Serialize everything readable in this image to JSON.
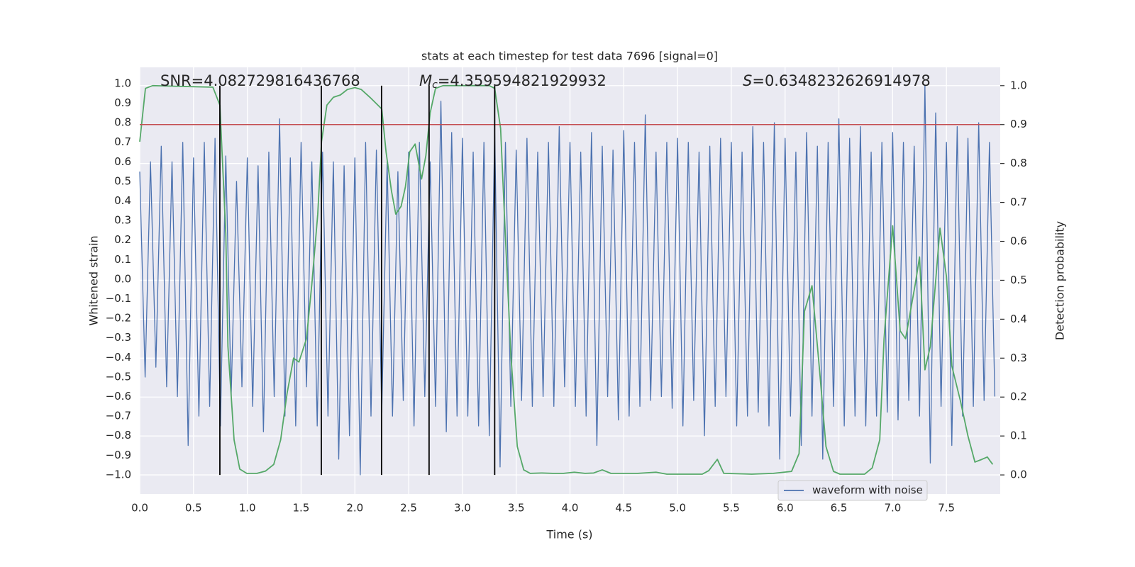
{
  "chart_data": {
    "type": "line",
    "title": "stats at each timestep for test data 7696 [signal=0]",
    "xlabel": "Time (s)",
    "ylabel": "Whitened strain",
    "y2label": "Detection probability",
    "annotations": [
      {
        "text": "SNR=4.082729816436768"
      },
      {
        "symbol": "M",
        "subscript": "c",
        "text": "=4.359594821929932"
      },
      {
        "symbol": "S",
        "text": "=0.6348232626914978"
      }
    ],
    "xlim": [
      0,
      8
    ],
    "ylim": [
      -1.098,
      1.083
    ],
    "y2lim": [
      -0.049,
      1.047
    ],
    "xticks": [
      {
        "value": 0,
        "label": "0.0"
      },
      0.5,
      {
        "value": 1,
        "label": "1.0"
      },
      1.5,
      {
        "value": 2,
        "label": "2.0"
      },
      2.5,
      {
        "value": 3,
        "label": "3.0"
      },
      3.5,
      {
        "value": 4,
        "label": "4.0"
      },
      4.5,
      {
        "value": 5,
        "label": "5.0"
      },
      5.5,
      {
        "value": 6,
        "label": "6.0"
      },
      6.5,
      {
        "value": 7,
        "label": "7.0"
      },
      7.5
    ],
    "yticks": [
      {
        "value": 1,
        "label": "1.0"
      },
      0.9,
      0.8,
      0.7,
      0.6,
      0.5,
      0.4,
      0.3,
      0.2,
      0.1,
      {
        "value": 0,
        "label": "0.0"
      },
      {
        "value": -0.1,
        "label": "−0.1"
      },
      {
        "value": -0.2,
        "label": "−0.2"
      },
      {
        "value": -0.3,
        "label": "−0.3"
      },
      {
        "value": -0.4,
        "label": "−0.4"
      },
      {
        "value": -0.5,
        "label": "−0.5"
      },
      {
        "value": -0.6,
        "label": "−0.6"
      },
      {
        "value": -0.7,
        "label": "−0.7"
      },
      {
        "value": -0.8,
        "label": "−0.8"
      },
      {
        "value": -0.9,
        "label": "−0.9"
      },
      {
        "value": -1,
        "label": "−1.0"
      }
    ],
    "y2ticks": [
      {
        "value": 0,
        "label": "0.0"
      },
      0.1,
      0.2,
      0.3,
      0.4,
      0.5,
      0.6,
      0.7,
      0.8,
      0.9,
      {
        "value": 1,
        "label": "1.0"
      }
    ],
    "grid": {
      "x": true,
      "y2": true
    },
    "legend": "lower right",
    "series": [
      {
        "name": "waveform with noise",
        "color": "#4c72b0",
        "axis": "y",
        "x": [
          0,
          0.05,
          0.1,
          0.15,
          0.2,
          0.25,
          0.3,
          0.35,
          0.4,
          0.45,
          0.5,
          0.55,
          0.6,
          0.65,
          0.7,
          0.75,
          0.8,
          0.85,
          0.9,
          0.95,
          1,
          1.05,
          1.1,
          1.15,
          1.2,
          1.25,
          1.3,
          1.35,
          1.4,
          1.45,
          1.5,
          1.55,
          1.6,
          1.65,
          1.7,
          1.75,
          1.8,
          1.85,
          1.9,
          1.95,
          2,
          2.05,
          2.1,
          2.15,
          2.2,
          2.25,
          2.3,
          2.35,
          2.4,
          2.45,
          2.5,
          2.55,
          2.6,
          2.65,
          2.7,
          2.75,
          2.8,
          2.85,
          2.9,
          2.95,
          3,
          3.05,
          3.1,
          3.15,
          3.2,
          3.25,
          3.3,
          3.35,
          3.4,
          3.45,
          3.5,
          3.55,
          3.6,
          3.65,
          3.7,
          3.75,
          3.8,
          3.85,
          3.9,
          3.95,
          4,
          4.05,
          4.1,
          4.15,
          4.2,
          4.25,
          4.3,
          4.35,
          4.4,
          4.45,
          4.5,
          4.55,
          4.6,
          4.65,
          4.7,
          4.75,
          4.8,
          4.85,
          4.9,
          4.95,
          5,
          5.05,
          5.1,
          5.15,
          5.2,
          5.25,
          5.3,
          5.35,
          5.4,
          5.45,
          5.5,
          5.55,
          5.6,
          5.65,
          5.7,
          5.75,
          5.8,
          5.85,
          5.9,
          5.95,
          6,
          6.05,
          6.1,
          6.15,
          6.2,
          6.25,
          6.3,
          6.35,
          6.4,
          6.45,
          6.5,
          6.55,
          6.6,
          6.65,
          6.7,
          6.75,
          6.8,
          6.85,
          6.9,
          6.95,
          7,
          7.05,
          7.1,
          7.15,
          7.2,
          7.25,
          7.3,
          7.35,
          7.4,
          7.45,
          7.5,
          7.55,
          7.6,
          7.65,
          7.7,
          7.75,
          7.8,
          7.85,
          7.9,
          7.95
        ],
        "values": [
          0.55,
          -0.5,
          0.6,
          -0.45,
          0.68,
          -0.55,
          0.6,
          -0.6,
          0.7,
          -0.85,
          0.62,
          -0.7,
          0.7,
          -0.65,
          0.72,
          -0.75,
          0.63,
          -0.6,
          0.5,
          -0.55,
          0.62,
          -0.65,
          0.58,
          -0.78,
          0.65,
          -0.6,
          0.82,
          -0.7,
          0.62,
          -0.75,
          0.7,
          -0.55,
          0.6,
          -0.75,
          0.65,
          -0.7,
          0.6,
          -0.92,
          0.58,
          -0.8,
          0.62,
          -1.0,
          0.7,
          -0.7,
          0.66,
          -0.68,
          0.6,
          -0.7,
          0.55,
          -0.62,
          0.65,
          -0.75,
          0.7,
          -0.6,
          0.6,
          -0.65,
          0.91,
          -0.78,
          0.75,
          -0.7,
          0.72,
          -0.7,
          0.65,
          -0.75,
          0.7,
          -0.8,
          0.75,
          -0.96,
          0.7,
          -0.65,
          0.66,
          -0.62,
          0.72,
          -0.65,
          0.65,
          -0.6,
          0.7,
          -0.65,
          0.78,
          -0.55,
          0.7,
          -0.65,
          0.65,
          -0.7,
          0.75,
          -0.85,
          0.68,
          -0.6,
          0.66,
          -0.72,
          0.76,
          -0.7,
          0.7,
          -0.65,
          0.84,
          -0.62,
          0.65,
          -0.6,
          0.7,
          -0.66,
          0.72,
          -0.75,
          0.7,
          -0.62,
          0.65,
          -0.8,
          0.68,
          -0.65,
          0.72,
          -0.6,
          0.7,
          -0.75,
          0.65,
          -0.7,
          0.78,
          -0.68,
          0.7,
          -0.75,
          0.8,
          -0.92,
          0.72,
          -0.7,
          0.65,
          -0.85,
          0.75,
          -0.7,
          0.68,
          -0.92,
          0.7,
          -0.65,
          0.82,
          -0.75,
          0.72,
          -0.7,
          0.78,
          -0.75,
          0.65,
          -0.7,
          0.7,
          -0.68,
          0.75,
          -0.72,
          0.7,
          -0.62,
          0.68,
          -0.7,
          0.99,
          -0.94,
          0.85,
          -0.65,
          0.7,
          -0.85,
          0.78,
          -0.7,
          0.72,
          -0.65,
          0.8,
          -0.62,
          0.7,
          -0.6
        ]
      },
      {
        "color": "#55a868",
        "axis": "y2",
        "x": [
          0,
          0.053,
          0.12,
          0.68,
          0.745,
          0.8,
          0.82,
          0.877,
          0.93,
          0.995,
          1.09,
          1.17,
          1.246,
          1.31,
          1.37,
          1.43,
          1.48,
          1.55,
          1.6,
          1.655,
          1.69,
          1.74,
          1.8,
          1.865,
          1.93,
          2,
          2.06,
          2.14,
          2.25,
          2.29,
          2.34,
          2.38,
          2.43,
          2.47,
          2.51,
          2.56,
          2.62,
          2.66,
          2.7,
          2.75,
          2.82,
          3.25,
          3.3,
          3.355,
          3.39,
          3.45,
          3.51,
          3.57,
          3.63,
          3.74,
          3.84,
          3.94,
          4.04,
          4.14,
          4.22,
          4.3,
          4.38,
          4.63,
          4.8,
          4.9,
          5.23,
          5.29,
          5.37,
          5.43,
          5.69,
          5.89,
          5.99,
          6.06,
          6.13,
          6.18,
          6.25,
          6.32,
          6.38,
          6.45,
          6.51,
          6.74,
          6.81,
          6.88,
          6.92,
          7,
          7.07,
          7.12,
          7.21,
          7.25,
          7.3,
          7.35,
          7.44,
          7.5,
          7.55,
          7.63,
          7.7,
          7.765,
          7.83,
          7.88,
          7.93
        ],
        "values": [
          0.856,
          0.993,
          1,
          0.996,
          0.95,
          0.62,
          0.33,
          0.09,
          0.015,
          0.004,
          0.004,
          0.01,
          0.027,
          0.09,
          0.21,
          0.3,
          0.29,
          0.35,
          0.49,
          0.67,
          0.856,
          0.95,
          0.97,
          0.976,
          0.99,
          0.995,
          0.99,
          0.97,
          0.94,
          0.83,
          0.73,
          0.67,
          0.69,
          0.74,
          0.83,
          0.85,
          0.76,
          0.82,
          0.93,
          0.993,
          1,
          1,
          0.993,
          0.89,
          0.67,
          0.31,
          0.073,
          0.013,
          0.004,
          0.005,
          0.004,
          0.004,
          0.007,
          0.004,
          0.005,
          0.013,
          0.004,
          0.004,
          0.007,
          0.002,
          0.002,
          0.011,
          0.04,
          0.004,
          0.002,
          0.004,
          0.007,
          0.009,
          0.055,
          0.42,
          0.486,
          0.27,
          0.073,
          0.009,
          0.002,
          0.002,
          0.018,
          0.09,
          0.35,
          0.64,
          0.37,
          0.35,
          0.49,
          0.56,
          0.27,
          0.33,
          0.634,
          0.51,
          0.28,
          0.19,
          0.1,
          0.033,
          0.04,
          0.046,
          0.027
        ]
      }
    ],
    "hlines": [
      {
        "y": 0.9,
        "axis": "y2",
        "color": "#c44e52"
      }
    ],
    "vlines": {
      "x": [
        0.745,
        1.688,
        2.248,
        2.69,
        3.3
      ],
      "ymin": 0,
      "ymax": 1,
      "axis": "y2",
      "color": "#000000"
    }
  }
}
